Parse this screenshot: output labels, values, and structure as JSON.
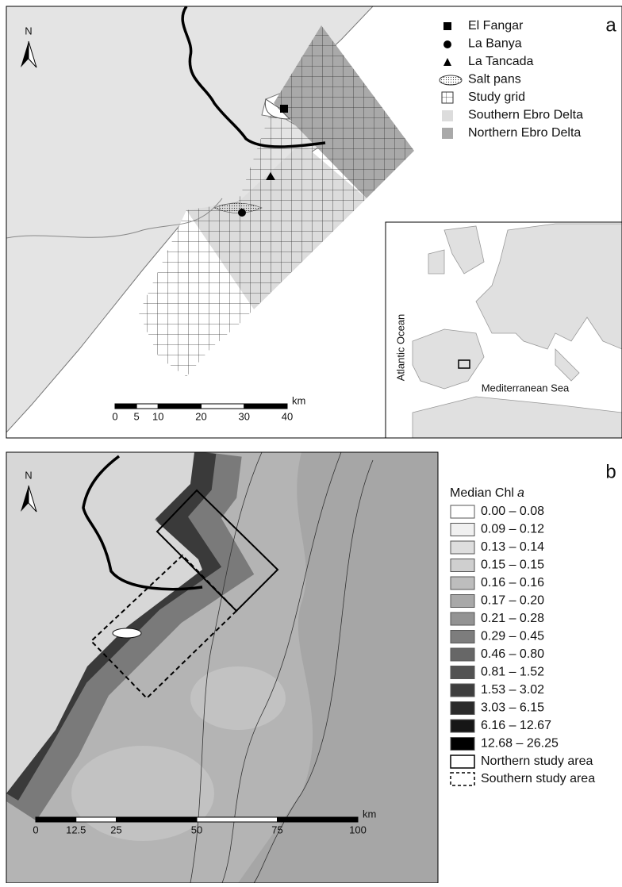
{
  "panel_a": {
    "label": "a",
    "north": "N",
    "legend": [
      "El Fangar",
      "La Banya",
      "La Tancada",
      "Salt pans",
      "Study grid",
      "Southern Ebro Delta",
      "Northern Ebro Delta"
    ],
    "scale_bar": {
      "ticks": [
        0,
        5,
        10,
        20,
        30,
        40
      ],
      "unit": "km"
    },
    "inset": {
      "ocean": "Atlantic Ocean",
      "sea": "Mediterranean Sea"
    }
  },
  "panel_b": {
    "label": "b",
    "north": "N",
    "legend_title": "Median Chl",
    "legend_title_var": "a",
    "classes": [
      {
        "label": "0.00 – 0.08",
        "color": "#ffffff"
      },
      {
        "label": "0.09 – 0.12",
        "color": "#f0f0f0"
      },
      {
        "label": "0.13 – 0.14",
        "color": "#dedede"
      },
      {
        "label": "0.15 – 0.15",
        "color": "#cfcfcf"
      },
      {
        "label": "0.16 – 0.16",
        "color": "#bdbdbd"
      },
      {
        "label": "0.17 – 0.20",
        "color": "#a8a8a8"
      },
      {
        "label": "0.21 – 0.28",
        "color": "#939393"
      },
      {
        "label": "0.29 – 0.45",
        "color": "#7d7d7d"
      },
      {
        "label": "0.46 – 0.80",
        "color": "#676767"
      },
      {
        "label": "0.81 – 1.52",
        "color": "#525252"
      },
      {
        "label": "1.53 – 3.02",
        "color": "#3e3e3e"
      },
      {
        "label": "3.03 – 6.15",
        "color": "#2a2a2a"
      },
      {
        "label": "6.16 – 12.67",
        "color": "#161616"
      },
      {
        "label": "12.68 – 26.25",
        "color": "#000000"
      }
    ],
    "study_areas": [
      "Northern study area",
      "Southern study area"
    ],
    "scale_bar": {
      "ticks": [
        0,
        12.5,
        25,
        50,
        75,
        100
      ],
      "unit": "km"
    }
  }
}
